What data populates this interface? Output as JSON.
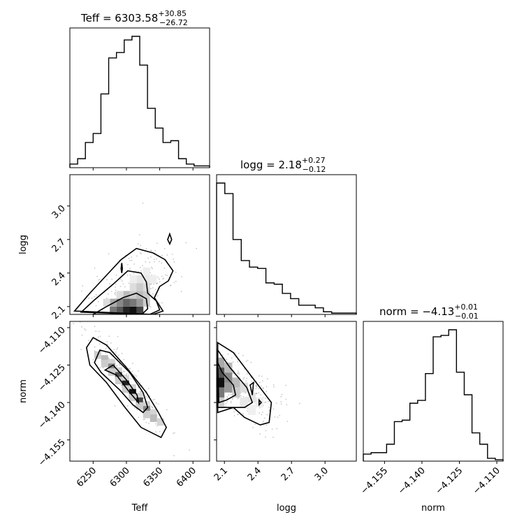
{
  "chart_data": {
    "type": "corner",
    "parameters": [
      "Teff",
      "logg",
      "norm"
    ],
    "titles": [
      {
        "name": "Teff",
        "median": "6303.58",
        "plus": "+30.85",
        "minus": "−26.72"
      },
      {
        "name": "logg",
        "median": "2.18",
        "plus": "+0.27",
        "minus": "−0.12"
      },
      {
        "name": "norm",
        "median": "−4.13",
        "plus": "+0.01",
        "minus": "−0.01"
      }
    ],
    "ranges": {
      "Teff": [
        6215,
        6425
      ],
      "logg": [
        2.03,
        3.28
      ],
      "norm": [
        -4.1635,
        -4.1075
      ]
    },
    "ticks": {
      "Teff": {
        "values": [
          6250,
          6300,
          6350,
          6400
        ],
        "labels": [
          "6250",
          "6300",
          "6350",
          "6400"
        ]
      },
      "logg": {
        "values": [
          2.1,
          2.4,
          2.7,
          3.0
        ],
        "labels": [
          "2.1",
          "2.4",
          "2.7",
          "3.0"
        ]
      },
      "norm": {
        "values": [
          -4.155,
          -4.14,
          -4.125,
          -4.11
        ],
        "labels": [
          "−4.155",
          "−4.140",
          "−4.125",
          "−4.110"
        ]
      }
    },
    "histograms": {
      "Teff": {
        "counts": [
          2,
          5,
          14,
          19,
          41,
          61,
          64,
          71,
          73,
          57,
          33,
          22,
          14,
          15,
          5,
          2,
          1,
          1
        ]
      },
      "logg": {
        "counts": [
          100,
          92,
          57,
          41,
          36,
          35,
          24,
          23,
          16,
          12,
          7,
          7,
          5,
          2,
          1,
          1,
          1
        ]
      },
      "norm": {
        "counts": [
          5,
          6,
          6,
          12,
          28,
          29,
          41,
          43,
          62,
          88,
          89,
          93,
          63,
          47,
          20,
          12,
          2,
          1
        ]
      }
    },
    "density": {
      "logg_vs_Teff": {
        "description": "peak near Teff 6300, logg 2.1; elongated toward higher Teff and logg"
      },
      "norm_vs_Teff": {
        "description": "tight negative correlation from (6250, -4.122) to (6360, -4.150)"
      },
      "norm_vs_logg": {
        "description": "peak near logg 2.1, norm -4.132; tail toward higher logg"
      }
    }
  }
}
